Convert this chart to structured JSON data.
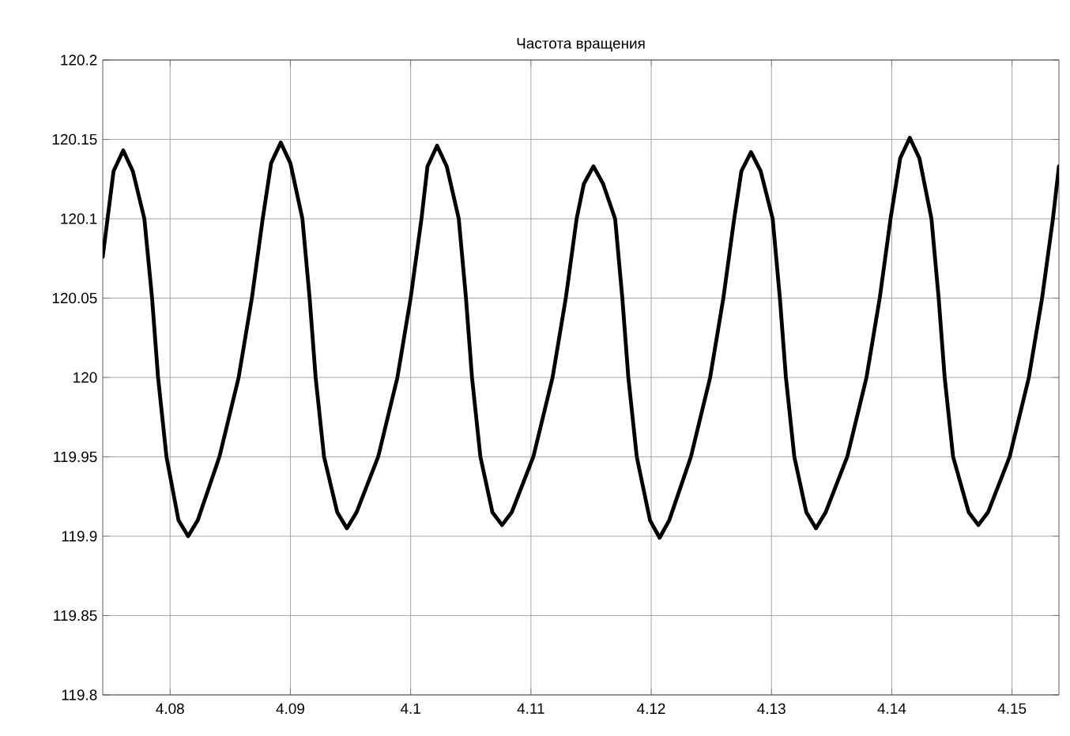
{
  "chart_data": {
    "type": "line",
    "title": "Частота вращения",
    "x": [
      4.0744,
      4.0753,
      4.0761,
      4.0769,
      4.07786,
      4.0785,
      4.079,
      4.0797,
      4.0807,
      4.0815,
      4.0823,
      4.0841,
      4.0857,
      4.0868,
      4.0877,
      4.0884,
      4.0892,
      4.09,
      4.091,
      4.0916,
      4.0921,
      4.0928,
      4.0939,
      4.0947,
      4.0955,
      4.0973,
      4.0989,
      4.1,
      4.1009,
      4.1014,
      4.1022,
      4.103,
      4.104,
      4.1046,
      4.1051,
      4.1058,
      4.1068,
      4.1076,
      4.1084,
      4.1102,
      4.1118,
      4.1129,
      4.1138,
      4.1144,
      4.1152,
      4.116,
      4.117,
      4.1176,
      4.1181,
      4.1188,
      4.1199,
      4.1207,
      4.1215,
      4.1233,
      4.1249,
      4.126,
      4.1269,
      4.1275,
      4.1283,
      4.1291,
      4.1301,
      4.1307,
      4.1312,
      4.1319,
      4.1329,
      4.1337,
      4.1345,
      4.1363,
      4.1379,
      4.139,
      4.1399,
      4.1407,
      4.1415,
      4.1423,
      4.1433,
      4.1439,
      4.1444,
      4.1451,
      4.1464,
      4.1472,
      4.148,
      4.1498,
      4.1514,
      4.1525,
      4.1534,
      4.1539
    ],
    "series": [
      {
        "color": "#000000",
        "values": [
          120.076,
          120.13,
          120.143,
          120.13,
          120.1,
          120.05,
          120.0,
          119.95,
          119.91,
          119.9,
          119.91,
          119.95,
          120.0,
          120.05,
          120.1,
          120.135,
          120.148,
          120.135,
          120.1,
          120.05,
          120.0,
          119.95,
          119.915,
          119.905,
          119.915,
          119.95,
          120.0,
          120.05,
          120.1,
          120.133,
          120.146,
          120.133,
          120.1,
          120.05,
          120.0,
          119.95,
          119.915,
          119.907,
          119.915,
          119.95,
          120.0,
          120.05,
          120.1,
          120.122,
          120.133,
          120.122,
          120.1,
          120.05,
          120.0,
          119.95,
          119.91,
          119.899,
          119.91,
          119.95,
          120.0,
          120.05,
          120.1,
          120.13,
          120.142,
          120.13,
          120.1,
          120.05,
          120.0,
          119.95,
          119.915,
          119.905,
          119.915,
          119.95,
          120.0,
          120.05,
          120.1,
          120.138,
          120.151,
          120.138,
          120.1,
          120.05,
          120.0,
          119.95,
          119.915,
          119.907,
          119.915,
          119.95,
          120.0,
          120.05,
          120.1,
          120.133
        ]
      }
    ],
    "xlim": [
      4.0744,
      4.1539
    ],
    "ylim": [
      119.8,
      120.2
    ],
    "xticks": [
      4.08,
      4.09,
      4.1,
      4.11,
      4.12,
      4.13,
      4.14,
      4.15
    ],
    "yticks": [
      119.8,
      119.85,
      119.9,
      119.95,
      120,
      120.05,
      120.1,
      120.15,
      120.2
    ],
    "grid": true,
    "marker": "none",
    "line_style": "solid"
  }
}
